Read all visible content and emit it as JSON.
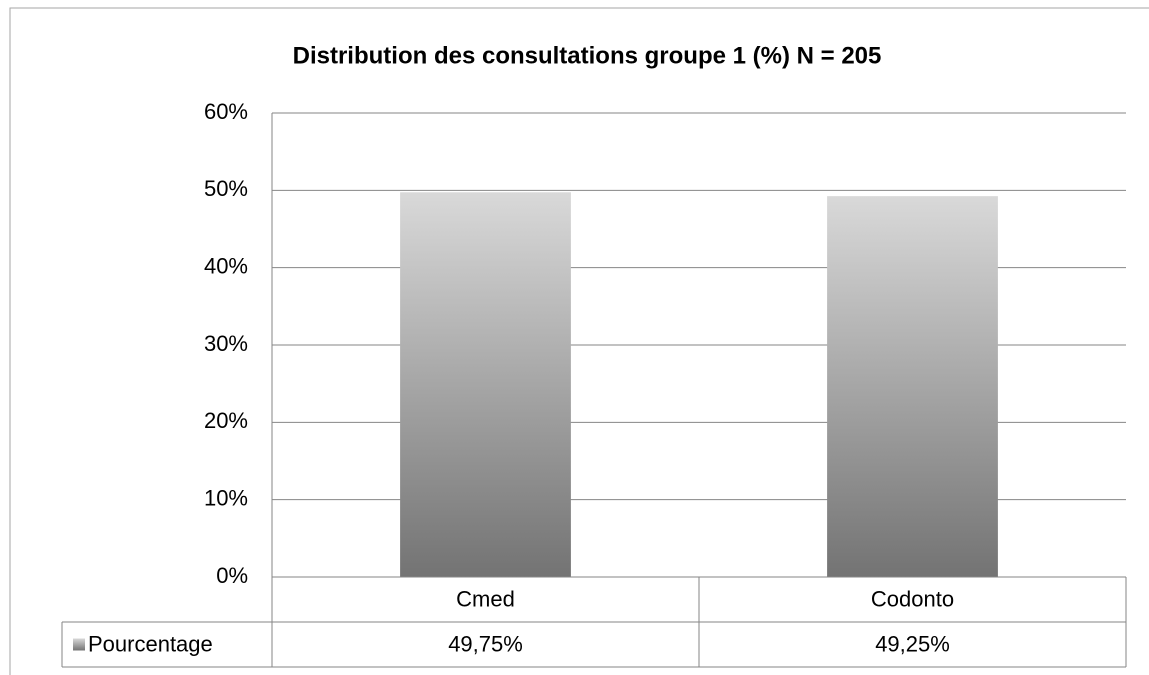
{
  "chart_data": {
    "type": "bar",
    "title": "Distribution des consultations groupe 1 (%) N = 205",
    "categories": [
      "Cmed",
      "Codonto"
    ],
    "series": [
      {
        "name": "Pourcentage",
        "gradient": [
          "#d9d9d9",
          "#737373"
        ],
        "values": [
          49.75,
          49.25
        ],
        "value_labels": [
          "49,75%",
          "49,25%"
        ]
      }
    ],
    "ylim": [
      0,
      60
    ],
    "yticks": [
      {
        "value": 0,
        "label": "0%"
      },
      {
        "value": 10,
        "label": "10%"
      },
      {
        "value": 20,
        "label": "20%"
      },
      {
        "value": 30,
        "label": "30%"
      },
      {
        "value": 40,
        "label": "40%"
      },
      {
        "value": 50,
        "label": "50%"
      },
      {
        "value": 60,
        "label": "60%"
      }
    ],
    "grid": true,
    "data_table": true
  }
}
